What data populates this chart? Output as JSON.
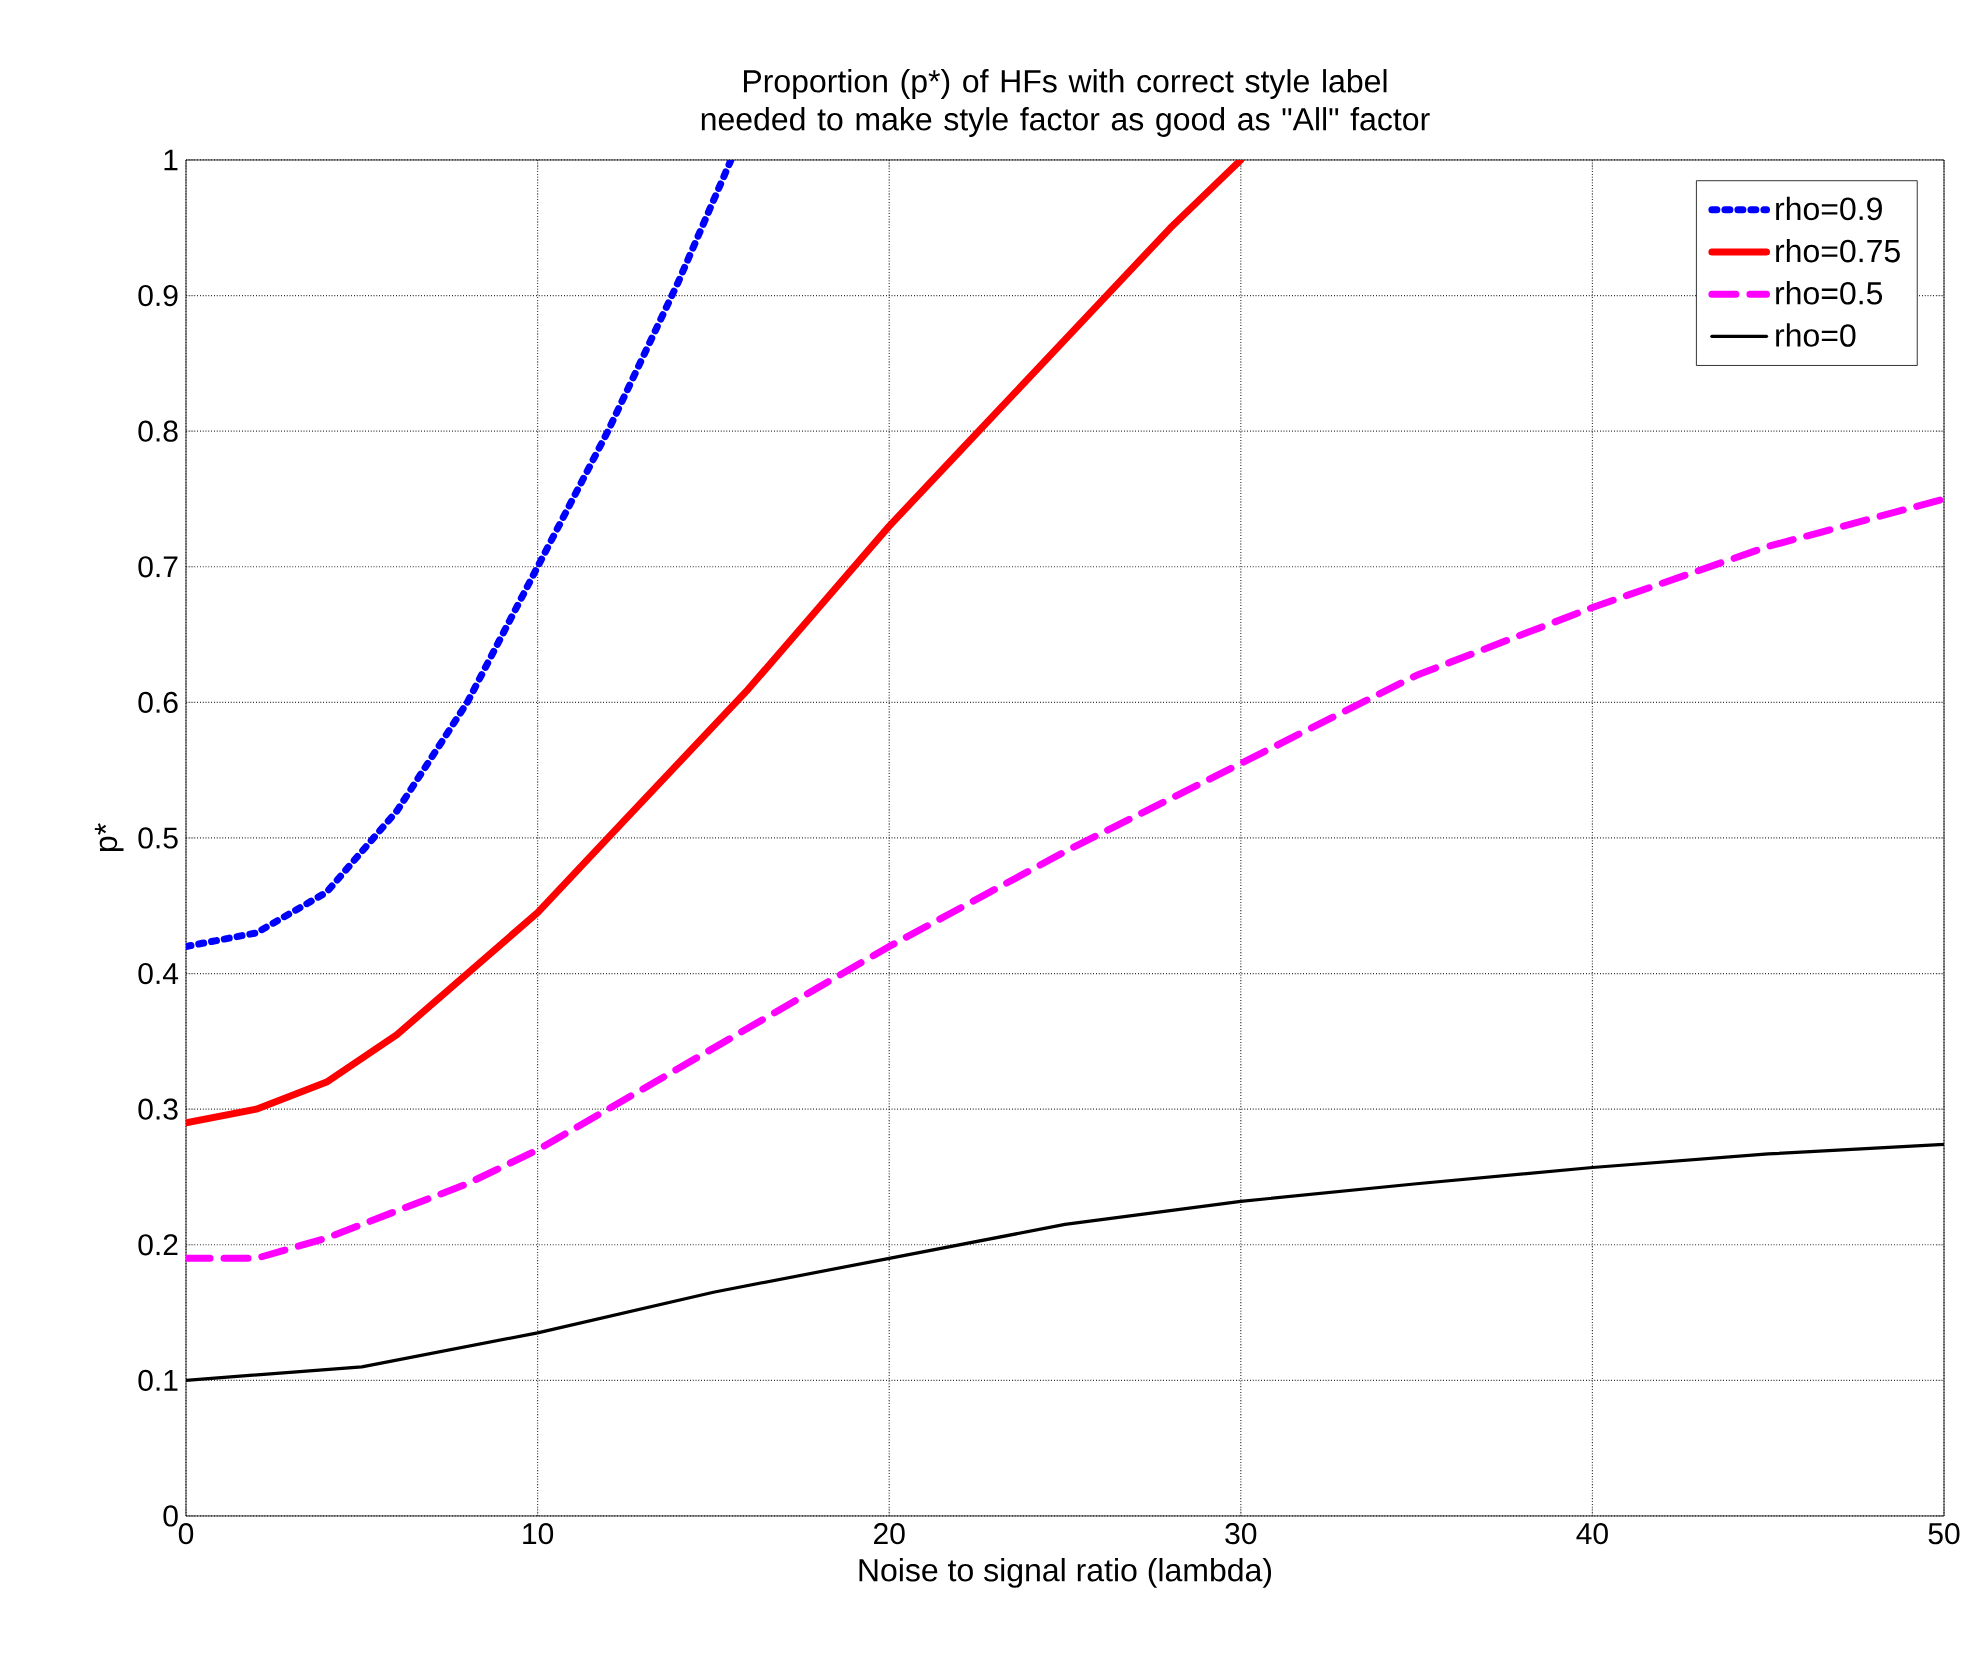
{
  "chart_data": {
    "type": "line",
    "title": "Proportion (p*) of HFs with correct style label needed to make style factor as good as \"All\" factor",
    "xlabel": "Noise to signal ratio (lambda)",
    "ylabel": "p*",
    "xlim": [
      0,
      50
    ],
    "ylim": [
      0,
      1
    ],
    "xticks": [
      0,
      10,
      20,
      30,
      40,
      50
    ],
    "yticks": [
      0,
      0.1,
      0.2,
      0.3,
      0.4,
      0.5,
      0.6,
      0.7,
      0.8,
      0.9,
      1
    ],
    "grid": true,
    "legend": "top right",
    "series": [
      {
        "name": "rho=0.9",
        "color": "#0000ff",
        "line_style": "dotted",
        "x": [
          0,
          2,
          4,
          6,
          8,
          10,
          12,
          14,
          15.5
        ],
        "values": [
          0.42,
          0.43,
          0.46,
          0.52,
          0.6,
          0.7,
          0.8,
          0.91,
          1.0
        ]
      },
      {
        "name": "rho=0.75",
        "color": "#ff0000",
        "line_style": "solid",
        "x": [
          0,
          2,
          4,
          6,
          8,
          10,
          12,
          14,
          16,
          18,
          20,
          22,
          24,
          26,
          28,
          30
        ],
        "values": [
          0.29,
          0.3,
          0.32,
          0.355,
          0.4,
          0.445,
          0.5,
          0.555,
          0.61,
          0.67,
          0.73,
          0.785,
          0.84,
          0.895,
          0.95,
          1.0
        ]
      },
      {
        "name": "rho=0.5",
        "color": "#ff00ff",
        "line_style": "dashed",
        "x": [
          0,
          2,
          4,
          6,
          8,
          10,
          12,
          14,
          16,
          18,
          20,
          25,
          30,
          35,
          40,
          45,
          50
        ],
        "values": [
          0.19,
          0.19,
          0.205,
          0.225,
          0.245,
          0.27,
          0.3,
          0.33,
          0.36,
          0.39,
          0.42,
          0.49,
          0.555,
          0.62,
          0.67,
          0.715,
          0.75
        ]
      },
      {
        "name": "rho=0",
        "color": "#000000",
        "line_style": "solid",
        "x": [
          0,
          5,
          10,
          15,
          20,
          25,
          30,
          35,
          40,
          45,
          50
        ],
        "values": [
          0.1,
          0.11,
          0.135,
          0.165,
          0.19,
          0.215,
          0.232,
          0.245,
          0.257,
          0.267,
          0.274
        ]
      }
    ]
  }
}
